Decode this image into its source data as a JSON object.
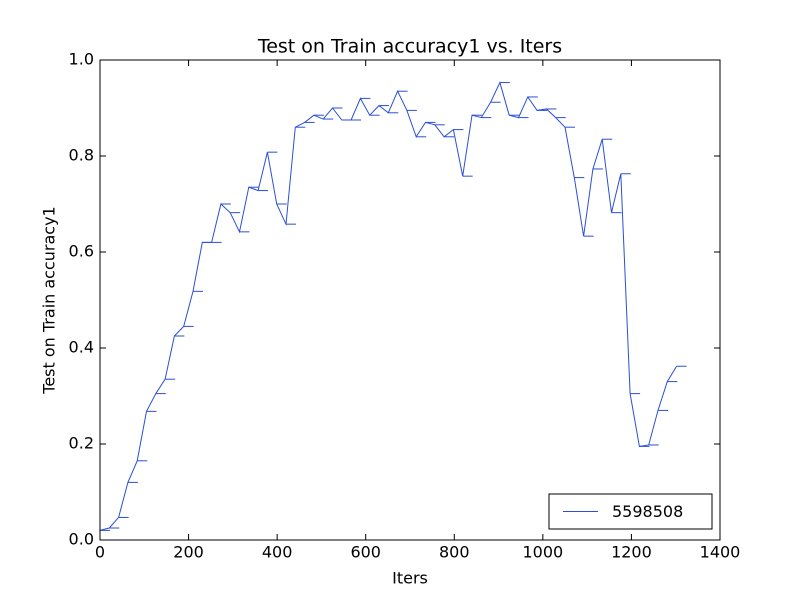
{
  "chart_data": {
    "type": "line",
    "title": "Test on Train accuracy1  vs. Iters",
    "xlabel": "Iters",
    "ylabel": "Test on Train accuracy1",
    "x": [
      0,
      21,
      42,
      63,
      84,
      105,
      126,
      147,
      168,
      189,
      210,
      231,
      252,
      273,
      294,
      315,
      336,
      357,
      378,
      399,
      420,
      441,
      462,
      483,
      504,
      525,
      546,
      567,
      588,
      609,
      630,
      651,
      672,
      693,
      714,
      735,
      756,
      777,
      798,
      819,
      840,
      861,
      882,
      903,
      924,
      945,
      966,
      987,
      1008,
      1029,
      1050,
      1071,
      1092,
      1113,
      1134,
      1155,
      1176,
      1197,
      1218,
      1239,
      1260,
      1281,
      1302
    ],
    "series": [
      {
        "name": "5598508",
        "color": "#2a4fd6",
        "values": [
          0.02,
          0.025,
          0.047,
          0.12,
          0.165,
          0.268,
          0.305,
          0.335,
          0.425,
          0.445,
          0.518,
          0.62,
          0.62,
          0.7,
          0.682,
          0.642,
          0.735,
          0.728,
          0.808,
          0.7,
          0.658,
          0.86,
          0.87,
          0.885,
          0.877,
          0.9,
          0.875,
          0.875,
          0.92,
          0.885,
          0.905,
          0.89,
          0.935,
          0.895,
          0.84,
          0.87,
          0.865,
          0.84,
          0.855,
          0.758,
          0.885,
          0.88,
          0.912,
          0.953,
          0.885,
          0.88,
          0.923,
          0.895,
          0.898,
          0.88,
          0.86,
          0.755,
          0.633,
          0.773,
          0.835,
          0.682,
          0.763,
          0.305,
          0.195,
          0.198,
          0.27,
          0.33,
          0.362
        ]
      }
    ],
    "xlim": [
      0,
      1400
    ],
    "xticks": [
      0,
      200,
      400,
      600,
      800,
      1000,
      1200,
      1400
    ],
    "ylim": [
      0,
      1
    ],
    "yticks": [
      {
        "value": 0,
        "label": "0.0"
      },
      0.2,
      0.4,
      0.6,
      0.8,
      {
        "value": 1,
        "label": "1.0"
      }
    ],
    "legend": "lower right",
    "grid": false
  }
}
